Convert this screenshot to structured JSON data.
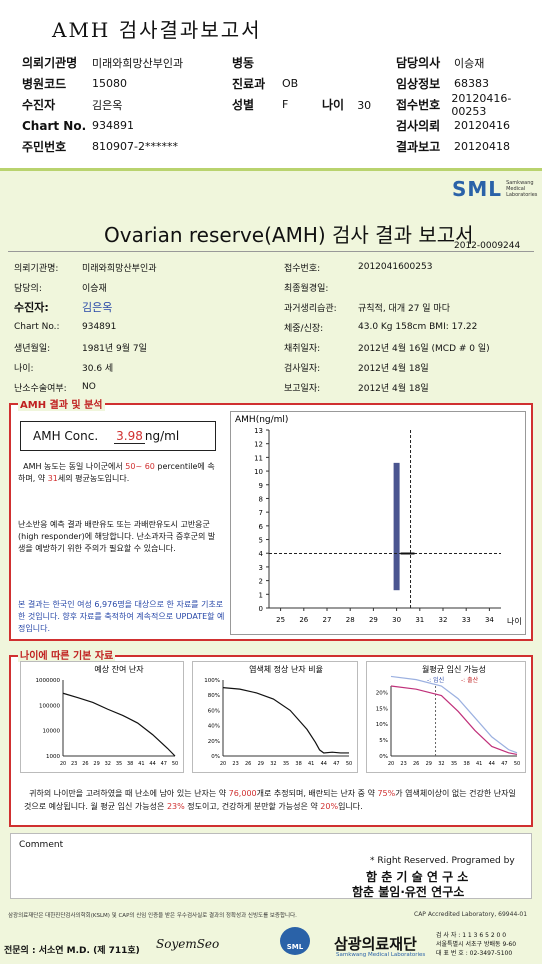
{
  "header": {
    "title": "AMH 검사결과보고서",
    "left": [
      {
        "k": "의뢰기관명",
        "v": "미래와희망산부인과"
      },
      {
        "k": "병원코드",
        "v": "15080"
      },
      {
        "k": "수진자",
        "v": "김은옥"
      },
      {
        "k": "Chart No.",
        "v": "934891"
      },
      {
        "k": "주민번호",
        "v": "810907-2******"
      }
    ],
    "mid": [
      {
        "k": "병동",
        "v": ""
      },
      {
        "k": "진료과",
        "v": "OB"
      },
      {
        "k": "성별",
        "v": "F"
      }
    ],
    "age": {
      "k": "나이",
      "v": "30"
    },
    "right": [
      {
        "k": "담당의사",
        "v": "이승재"
      },
      {
        "k": "임상정보",
        "v": "68383"
      },
      {
        "k": "접수번호",
        "v": "20120416-00253"
      },
      {
        "k": "검사의뢰",
        "v": "20120416"
      },
      {
        "k": "결과보고",
        "v": "20120418"
      }
    ]
  },
  "report": {
    "logo": "SML",
    "logo_sub": [
      "Samkwang",
      "Medical",
      "Laboratories"
    ],
    "title": "Ovarian reserve(AMH) 검사 결과 보고서",
    "number": "2012-0009244",
    "info_left": [
      {
        "k": "의뢰기관명:",
        "v": "미래와희망산부인과"
      },
      {
        "k": "담당의:",
        "v": "이승재"
      },
      {
        "k": "수진자:",
        "v": "김은옥"
      },
      {
        "k": "Chart No.:",
        "v": "934891"
      },
      {
        "k": "생년월일:",
        "v": "1981년 9월 7일"
      },
      {
        "k": "나이:",
        "v": "30.6 세"
      },
      {
        "k": "난소수술여부:",
        "v": "NO"
      }
    ],
    "info_right": [
      {
        "k": "접수번호:",
        "v": "2012041600253"
      },
      {
        "k": "최종월경일:",
        "v": ""
      },
      {
        "k": "과거생리습관:",
        "v": "규칙적, 대개  27 일 마다"
      },
      {
        "k": "체중/신장:",
        "v": "43.0 Kg   158cm    BMI:  17.22"
      },
      {
        "k": "채취일자:",
        "v": "2012년 4월 16일   (MCD # 0 일)"
      },
      {
        "k": "검사일자:",
        "v": "2012년 4월 18일"
      },
      {
        "k": "보고일자:",
        "v": "2012년 4월 18일"
      }
    ],
    "amh_section": "AMH 결과 및 분석",
    "amh_label": "AMH Conc.",
    "amh_value": "3.98",
    "amh_unit": "ng/ml",
    "para1": [
      "AMH 농도는 동일 나이군에서",
      "50~ 60",
      "percentile에 속하며, 약",
      "31",
      "세의 평균농도입니다."
    ],
    "para2": "난소반응 예측 결과 배란유도 또는 과배란유도시 고반응군 (high responder)에 해당합니다. 난소과자극 증후군의 발생을 예방하기 위한 주의가 필요할 수 있습니다.",
    "para3": "본 결과는 한국인 여성 6,976명을 대상으로 한 자료를 기초로 한 것입니다. 향후 자료를 축적하여 계속적으로 UPDATE할 예정입니다.",
    "age_section": "나이에 따른 기본 자료",
    "mini_titles": [
      "예상 잔여 난자",
      "염색체 정상 난자 비율",
      "월평균 임신 가능성"
    ],
    "legend": [
      "-: 임신",
      "-: 출산"
    ],
    "summary": [
      "귀하의 나이만을 고려하였을 때 난소에 남아 있는 난자는 약",
      "76,000",
      "개로 추정되며, 배란되는 난자 중 약",
      "75%",
      "가 염색체이상이 없는 건강한 난자일 것으로 예상됩니다. 월 평균 임신 가능성은",
      "23%",
      "정도이고, 건강하게 분만할 가능성은 약",
      "20%",
      "입니다."
    ],
    "comment_label": "Comment",
    "rights": "* Right Reserved. Programed by",
    "org1": "함 춘  기 술  연 구 소",
    "org2": "함춘 불임·유전 연구소",
    "footnote": "삼광의료재단은 대한진단검사의학회(KSLM) 및 CAP의 신임 인증을 받은 우수검사실로 결과의 정확성과 신빙도를 보증합니다.",
    "cap": "CAP Accredited Laboratory, 69944-01",
    "doctor": "전문의 : 서소연 M.D. (제 711호)",
    "signature": "SoyemSeo",
    "foundation": "삼광의료재단",
    "foundation_sub": "Samkwang Medical Laboratories",
    "contact": [
      "검 사 자 : 1 1 3 6 5 2 0 0",
      "서울특별시 서초구 방배동 9-60",
      "대 표 번 호 : 02-3497-5100"
    ]
  },
  "chart_data": [
    {
      "type": "scatter",
      "title": "",
      "ylabel": "AMH(ng/ml)",
      "xlabel": "나이",
      "x_ticks": [
        25,
        26,
        27,
        28,
        29,
        30,
        31,
        32,
        33,
        34
      ],
      "y_ticks": [
        0,
        1,
        2,
        3,
        4,
        5,
        6,
        7,
        8,
        9,
        10,
        11,
        12,
        13
      ],
      "xlim": [
        24.5,
        34.5
      ],
      "ylim": [
        0,
        13
      ],
      "range_bar": {
        "x": 30,
        "low": 1.3,
        "high": 10.6
      },
      "point": {
        "x": 30.6,
        "y": 3.98
      },
      "reference_line": {
        "x": 30.6,
        "y": 3.98
      }
    },
    {
      "type": "line",
      "title": "예상 잔여 난자",
      "yscale": "log",
      "y_ticks": [
        1000,
        10000,
        100000,
        1000000
      ],
      "x_ticks": [
        20,
        23,
        26,
        29,
        32,
        35,
        38,
        41,
        44,
        47,
        50
      ],
      "x": [
        20,
        24,
        28,
        32,
        36,
        40,
        44,
        48,
        50
      ],
      "values": [
        300000,
        200000,
        130000,
        70000,
        40000,
        20000,
        7000,
        2000,
        1000
      ]
    },
    {
      "type": "line",
      "title": "염색체 정상 난자 비율",
      "y_ticks_label": [
        "0%",
        "20%",
        "40%",
        "60%",
        "80%",
        "100%"
      ],
      "x_ticks": [
        20,
        23,
        26,
        29,
        32,
        35,
        38,
        41,
        44,
        47,
        50
      ],
      "x": [
        20,
        24,
        28,
        32,
        36,
        40,
        42,
        43,
        44,
        46,
        48,
        50
      ],
      "values": [
        90,
        88,
        83,
        75,
        60,
        35,
        18,
        8,
        4,
        5,
        4,
        4
      ]
    },
    {
      "type": "line",
      "title": "월평균 임신 가능성",
      "y_ticks_label": [
        "0%",
        "5%",
        "10%",
        "15%",
        "20%"
      ],
      "x_ticks": [
        20,
        23,
        26,
        29,
        32,
        35,
        38,
        41,
        44,
        47,
        50
      ],
      "series": [
        {
          "name": "임신",
          "x": [
            20,
            26,
            32,
            36,
            40,
            44,
            48,
            50
          ],
          "values": [
            25,
            24,
            22,
            18,
            12,
            6,
            2,
            1
          ]
        },
        {
          "name": "출산",
          "x": [
            20,
            26,
            32,
            36,
            40,
            44,
            48,
            50
          ],
          "values": [
            22,
            21,
            19,
            14,
            8,
            3,
            1,
            0.5
          ]
        }
      ]
    }
  ],
  "colors": {
    "accent": "#d03030",
    "green_band": "#b9d36e",
    "bar": "#4a5590",
    "blue_text": "#2848a8",
    "logo": "#2a62a8"
  }
}
